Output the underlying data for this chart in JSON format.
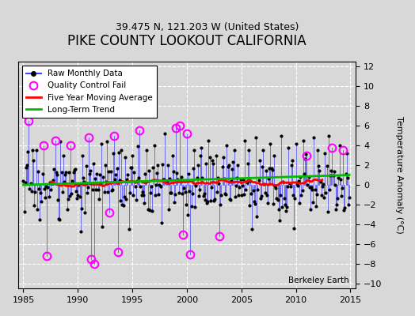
{
  "title": "PIKE COUNTY LOOKOUT CALIFORNIA",
  "subtitle": "39.475 N, 121.203 W (United States)",
  "ylabel": "Temperature Anomaly (°C)",
  "watermark": "Berkeley Earth",
  "xlim": [
    1984.5,
    2015.5
  ],
  "ylim": [
    -10.5,
    12.5
  ],
  "yticks": [
    -10,
    -8,
    -6,
    -4,
    -2,
    0,
    2,
    4,
    6,
    8,
    10,
    12
  ],
  "xticks": [
    1985,
    1990,
    1995,
    2000,
    2005,
    2010,
    2015
  ],
  "background_color": "#d8d8d8",
  "plot_background": "#d8d8d8",
  "raw_color": "#4444ff",
  "qc_color": "magenta",
  "moving_avg_color": "red",
  "trend_color": "#00bb00",
  "title_fontsize": 12,
  "subtitle_fontsize": 9,
  "seed": 17
}
